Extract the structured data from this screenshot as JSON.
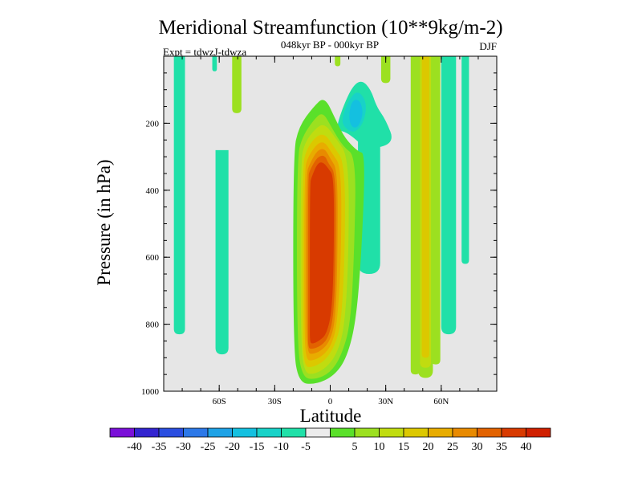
{
  "chart_data": {
    "type": "contour",
    "title": "Meridional Streamfunction (10**9kg/m-2)",
    "subtitle": "048kyr BP - 000kyr BP",
    "left_label": "Expt = tdwzJ-tdwza",
    "right_label": "DJF",
    "xlabel": "Latitude",
    "ylabel": "Pressure (in hPa)",
    "xlim": [
      -90,
      90
    ],
    "ylim": [
      0,
      1000
    ],
    "y_reversed": true,
    "x_ticks": [
      {
        "value": -60,
        "label": "60S"
      },
      {
        "value": -30,
        "label": "30S"
      },
      {
        "value": 0,
        "label": "0"
      },
      {
        "value": 30,
        "label": "30N"
      },
      {
        "value": 60,
        "label": "60N"
      }
    ],
    "y_ticks": [
      {
        "value": 200,
        "label": "200"
      },
      {
        "value": 400,
        "label": "400"
      },
      {
        "value": 600,
        "label": "600"
      },
      {
        "value": 800,
        "label": "800"
      },
      {
        "value": 1000,
        "label": "1000"
      }
    ],
    "background_color": "#e6e6e6",
    "colorbar": {
      "colors": [
        "#7a10d8",
        "#3324d0",
        "#2a4ee0",
        "#2c78e8",
        "#1ea2e6",
        "#14c0e0",
        "#18d2c8",
        "#20e0a8",
        "#ececec",
        "#5ae02a",
        "#9ce020",
        "#c0dc10",
        "#dcc800",
        "#e8ac00",
        "#e88a00",
        "#e26200",
        "#d83a00",
        "#d02000"
      ],
      "labels": [
        "-40",
        "-35",
        "-30",
        "-25",
        "-20",
        "-15",
        "-10",
        "-5",
        "5",
        "10",
        "15",
        "20",
        "25",
        "30",
        "35",
        "40"
      ]
    },
    "regions": [
      {
        "lat": -81.5,
        "p_top": 0,
        "p_bot": 830,
        "width": 6,
        "level": -5
      },
      {
        "lat": -62.5,
        "p_top": 0,
        "p_bot": 45,
        "width": 2.5,
        "level": -5
      },
      {
        "lat": -58.5,
        "p_top": 290,
        "p_bot": 890,
        "width": 7,
        "level": -5
      },
      {
        "lat": -50.5,
        "p_top": 0,
        "p_bot": 170,
        "width": 5,
        "level": 10
      },
      {
        "lat": 4,
        "p_top": 0,
        "p_bot": 30,
        "width": 3,
        "level": 10
      },
      {
        "lat": 21,
        "p_top": 230,
        "p_bot": 650,
        "width": 12,
        "level": -5
      },
      {
        "lat": 30,
        "p_top": 0,
        "p_bot": 80,
        "width": 5,
        "level": 10
      },
      {
        "lat": 46,
        "p_top": 0,
        "p_bot": 950,
        "width": 5,
        "level": 10
      },
      {
        "lat": 51.5,
        "p_top": 0,
        "p_bot": 960,
        "width": 8,
        "level": 10
      },
      {
        "lat": 51.5,
        "p_top": 0,
        "p_bot": 930,
        "width": 6,
        "level": 15
      },
      {
        "lat": 51.5,
        "p_top": 0,
        "p_bot": 900,
        "width": 4,
        "level": 20
      },
      {
        "lat": 57,
        "p_top": 0,
        "p_bot": 920,
        "width": 5,
        "level": 10
      },
      {
        "lat": 64,
        "p_top": 0,
        "p_bot": 830,
        "width": 8,
        "level": -5
      },
      {
        "lat": 73,
        "p_top": 0,
        "p_bot": 620,
        "width": 4,
        "level": -5
      }
    ],
    "upper_anomaly": [
      {
        "level": -5,
        "points": [
          [
            4,
            200
          ],
          [
            7,
            150
          ],
          [
            12,
            90
          ],
          [
            17,
            70
          ],
          [
            22,
            100
          ],
          [
            25,
            150
          ],
          [
            30,
            190
          ],
          [
            35,
            260
          ],
          [
            20,
            280
          ],
          [
            10,
            230
          ],
          [
            4,
            220
          ]
        ]
      },
      {
        "level": -10,
        "points": [
          [
            6,
            190
          ],
          [
            10,
            130
          ],
          [
            15,
            100
          ],
          [
            20,
            140
          ],
          [
            18,
            200
          ],
          [
            13,
            230
          ],
          [
            8,
            215
          ]
        ]
      },
      {
        "level": -15,
        "points": [
          [
            10,
            170
          ],
          [
            12,
            130
          ],
          [
            16,
            130
          ],
          [
            18,
            170
          ],
          [
            15,
            215
          ],
          [
            11,
            210
          ]
        ]
      }
    ],
    "main_cell": [
      {
        "level": 5,
        "points": [
          [
            -17,
            210
          ],
          [
            -9,
            150
          ],
          [
            -3,
            120
          ],
          [
            3,
            190
          ],
          [
            8,
            245
          ],
          [
            15,
            285
          ],
          [
            19,
            290
          ],
          [
            17,
            580
          ],
          [
            14,
            790
          ],
          [
            9,
            900
          ],
          [
            2,
            955
          ],
          [
            -8,
            980
          ],
          [
            -17,
            975
          ],
          [
            -20,
            870
          ],
          [
            -20,
            290
          ]
        ]
      },
      {
        "level": 10,
        "points": [
          [
            -15,
            240
          ],
          [
            -9,
            190
          ],
          [
            -4,
            165
          ],
          [
            1,
            215
          ],
          [
            7,
            270
          ],
          [
            14,
            300
          ],
          [
            13,
            580
          ],
          [
            11,
            800
          ],
          [
            6,
            895
          ],
          [
            0,
            945
          ],
          [
            -8,
            965
          ],
          [
            -15,
            960
          ],
          [
            -18,
            860
          ],
          [
            -18,
            300
          ]
        ]
      },
      {
        "level": 15,
        "points": [
          [
            -14,
            260
          ],
          [
            -8,
            215
          ],
          [
            -3,
            200
          ],
          [
            3,
            245
          ],
          [
            10,
            300
          ],
          [
            10,
            580
          ],
          [
            8,
            800
          ],
          [
            4,
            885
          ],
          [
            -2,
            930
          ],
          [
            -9,
            950
          ],
          [
            -14,
            945
          ],
          [
            -16,
            850
          ],
          [
            -16,
            320
          ]
        ]
      },
      {
        "level": 20,
        "points": [
          [
            -13,
            280
          ],
          [
            -8,
            240
          ],
          [
            -3,
            230
          ],
          [
            2,
            270
          ],
          [
            8,
            320
          ],
          [
            8,
            580
          ],
          [
            6,
            800
          ],
          [
            2,
            870
          ],
          [
            -3,
            910
          ],
          [
            -10,
            930
          ],
          [
            -14,
            925
          ],
          [
            -15,
            840
          ],
          [
            -15,
            330
          ]
        ]
      },
      {
        "level": 25,
        "points": [
          [
            -12,
            300
          ],
          [
            -7,
            260
          ],
          [
            -3,
            255
          ],
          [
            1,
            290
          ],
          [
            6,
            330
          ],
          [
            6,
            580
          ],
          [
            4,
            790
          ],
          [
            1,
            860
          ],
          [
            -4,
            895
          ],
          [
            -10,
            910
          ],
          [
            -13,
            905
          ],
          [
            -14,
            830
          ],
          [
            -14,
            340
          ]
        ]
      },
      {
        "level": 30,
        "points": [
          [
            -11,
            320
          ],
          [
            -7,
            280
          ],
          [
            -3,
            275
          ],
          [
            0,
            305
          ],
          [
            4,
            340
          ],
          [
            4,
            580
          ],
          [
            3,
            780
          ],
          [
            0,
            850
          ],
          [
            -5,
            880
          ],
          [
            -10,
            890
          ],
          [
            -12,
            885
          ],
          [
            -13,
            820
          ],
          [
            -13,
            350
          ]
        ]
      },
      {
        "level": 35,
        "points": [
          [
            -11,
            340
          ],
          [
            -7,
            300
          ],
          [
            -3,
            295
          ],
          [
            -1,
            320
          ],
          [
            3,
            350
          ],
          [
            3,
            580
          ],
          [
            2,
            770
          ],
          [
            -1,
            840
          ],
          [
            -5,
            865
          ],
          [
            -10,
            875
          ],
          [
            -12,
            870
          ],
          [
            -12,
            810
          ],
          [
            -12,
            360
          ]
        ]
      },
      {
        "level": 40,
        "points": [
          [
            -10,
            360
          ],
          [
            -7,
            320
          ],
          [
            -4,
            315
          ],
          [
            -1,
            335
          ],
          [
            2,
            360
          ],
          [
            2,
            580
          ],
          [
            1,
            760
          ],
          [
            -2,
            830
          ],
          [
            -6,
            850
          ],
          [
            -10,
            860
          ],
          [
            -11,
            850
          ],
          [
            -11,
            800
          ],
          [
            -11,
            380
          ]
        ]
      }
    ]
  }
}
